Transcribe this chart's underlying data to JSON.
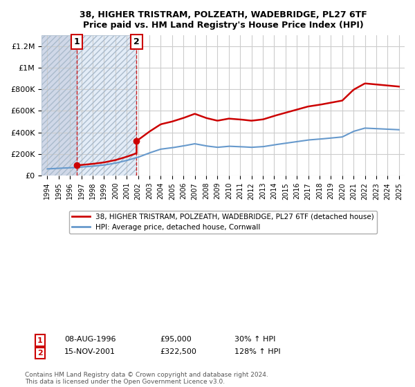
{
  "title": "38, HIGHER TRISTRAM, POLZEATH, WADEBRIDGE, PL27 6TF",
  "subtitle": "Price paid vs. HM Land Registry's House Price Index (HPI)",
  "legend_line1": "38, HIGHER TRISTRAM, POLZEATH, WADEBRIDGE, PL27 6TF (detached house)",
  "legend_line2": "HPI: Average price, detached house, Cornwall",
  "footnote": "Contains HM Land Registry data © Crown copyright and database right 2024.\nThis data is licensed under the Open Government Licence v3.0.",
  "sale1_date": "08-AUG-1996",
  "sale1_price": 95000,
  "sale1_hpi_text": "30% ↑ HPI",
  "sale2_date": "15-NOV-2001",
  "sale2_price": 322500,
  "sale2_hpi_text": "128% ↑ HPI",
  "sale1_x": 1996.6,
  "sale2_x": 2001.87,
  "red_line_color": "#cc0000",
  "blue_line_color": "#6699cc",
  "hatched_color": "#d0d8e8",
  "background_color": "#ffffff",
  "grid_color": "#cccccc",
  "ylim": [
    0,
    1300000
  ],
  "xlim_start": 1993.5,
  "xlim_end": 2025.5,
  "hpi_years": [
    1994,
    1995,
    1996,
    1997,
    1998,
    1999,
    2000,
    2001,
    2002,
    2003,
    2004,
    2005,
    2006,
    2007,
    2008,
    2009,
    2010,
    2011,
    2012,
    2013,
    2014,
    2015,
    2016,
    2017,
    2018,
    2019,
    2020,
    2021,
    2022,
    2023,
    2024,
    2025
  ],
  "hpi_values": [
    62000,
    68000,
    72000,
    79000,
    87000,
    98000,
    115000,
    140000,
    170000,
    210000,
    245000,
    258000,
    275000,
    295000,
    275000,
    262000,
    272000,
    268000,
    262000,
    268000,
    285000,
    300000,
    315000,
    330000,
    338000,
    348000,
    358000,
    410000,
    440000,
    435000,
    430000,
    425000
  ]
}
